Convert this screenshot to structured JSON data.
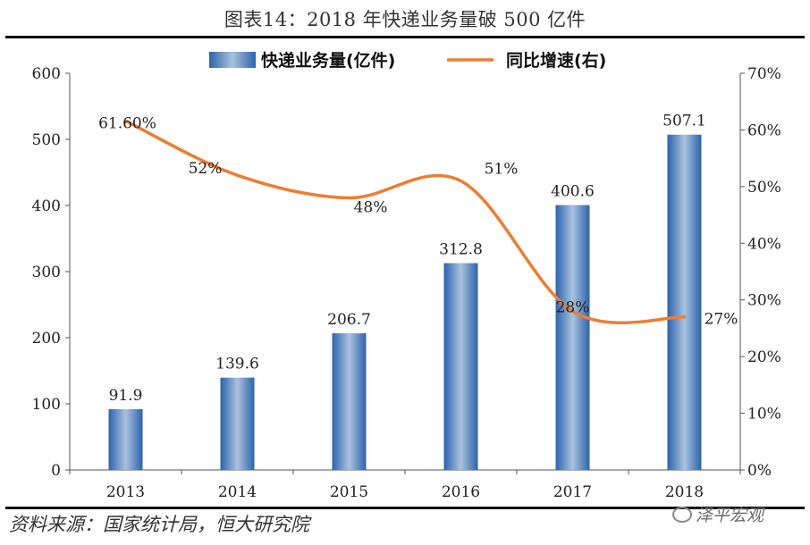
{
  "title": "图表14：2018 年快递业务量破 500 亿件",
  "source": "资料来源：国家统计局，恒大研究院",
  "watermark": "泽平宏观",
  "chart_data": {
    "type": "bar+line",
    "categories": [
      "2013",
      "2014",
      "2015",
      "2016",
      "2017",
      "2018"
    ],
    "series": [
      {
        "name": "快递业务量(亿件)",
        "type": "bar",
        "axis": "left",
        "values": [
          91.9,
          139.6,
          206.7,
          312.8,
          400.6,
          507.1
        ],
        "labels": [
          "91.9",
          "139.6",
          "206.7",
          "312.8",
          "400.6",
          "507.1"
        ],
        "color": "#3a72b8"
      },
      {
        "name": "同比增速(右)",
        "type": "line",
        "axis": "right",
        "values": [
          61.6,
          52,
          48,
          51,
          28,
          27
        ],
        "labels": [
          "61.60%",
          "52%",
          "48%",
          "51%",
          "28%",
          "27%"
        ],
        "color": "#ed7d31"
      }
    ],
    "y_left": {
      "min": 0,
      "max": 600,
      "ticks": [
        "0",
        "100",
        "200",
        "300",
        "400",
        "500",
        "600"
      ]
    },
    "y_right": {
      "min": 0,
      "max": 70,
      "ticks": [
        "0%",
        "10%",
        "20%",
        "30%",
        "40%",
        "50%",
        "60%",
        "70%"
      ]
    },
    "legend": "top-center"
  }
}
